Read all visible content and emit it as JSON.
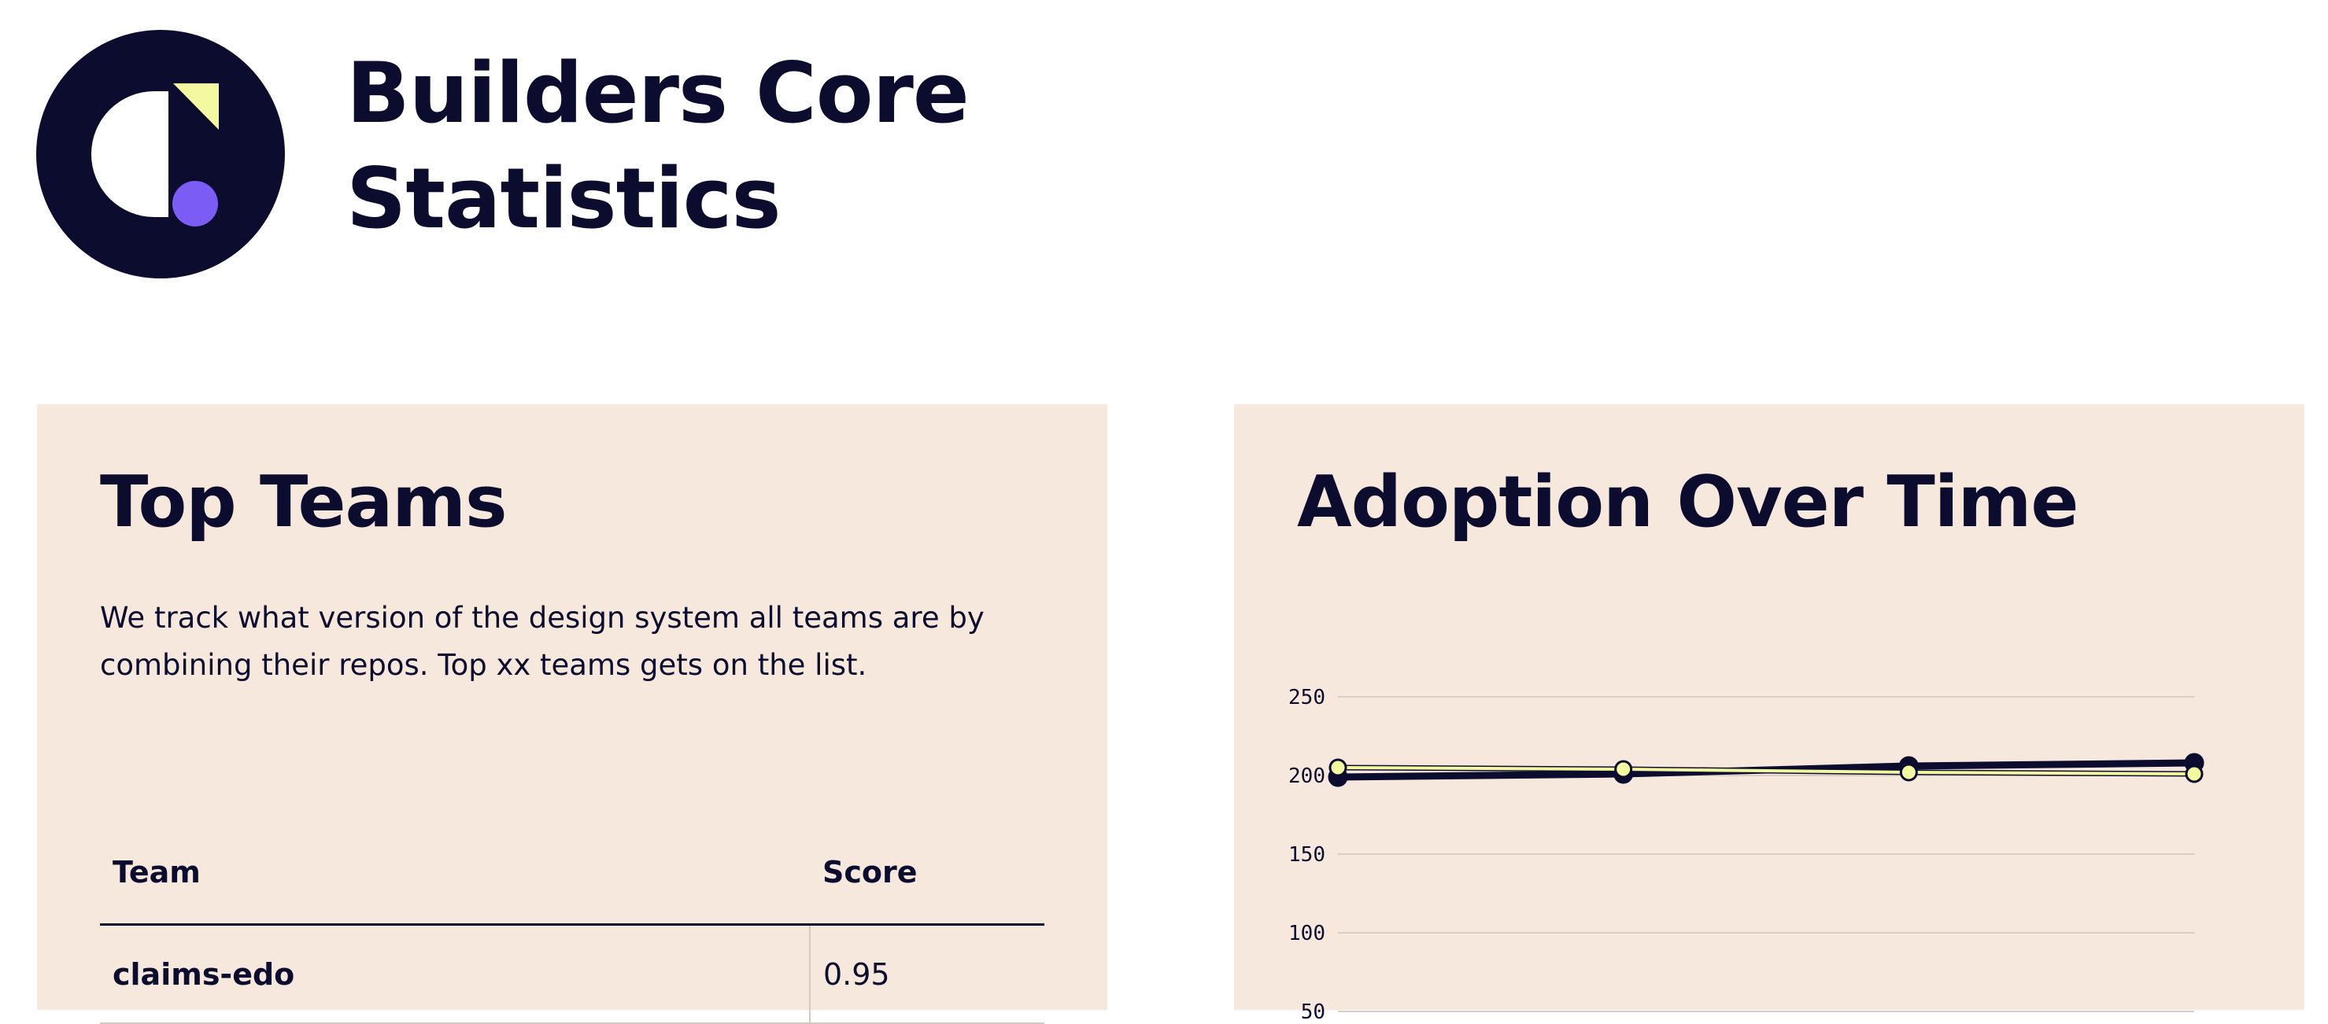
{
  "header": {
    "title_line1": "Builders Core",
    "title_line2": "Statistics",
    "logo_icon": "builders-core-logo-icon"
  },
  "colors": {
    "navy": "#0c0c2e",
    "card_bg": "#f7e8de",
    "yellow": "#f3f9a0",
    "purple": "#7b5cf5",
    "grid": "#d8cec6"
  },
  "top_teams": {
    "title": "Top Teams",
    "description": "We track what version of the design system all teams are by combining their repos. Top xx teams gets on the list.",
    "columns": [
      "Team",
      "Score"
    ],
    "rows": [
      {
        "team": "claims-edo",
        "score": "0.95"
      }
    ]
  },
  "adoption": {
    "title": "Adoption Over Time"
  },
  "chart_data": {
    "type": "line",
    "title": "Adoption Over Time",
    "xlabel": "",
    "ylabel": "",
    "ylim": [
      0,
      250
    ],
    "yticks": [
      250,
      200,
      150,
      100,
      50
    ],
    "grid": true,
    "series": [
      {
        "color": "#0c0c2e",
        "values": [
          199,
          201,
          206,
          208
        ]
      },
      {
        "color": "#f3f9a0",
        "values": [
          205,
          204,
          202,
          201
        ]
      }
    ]
  }
}
